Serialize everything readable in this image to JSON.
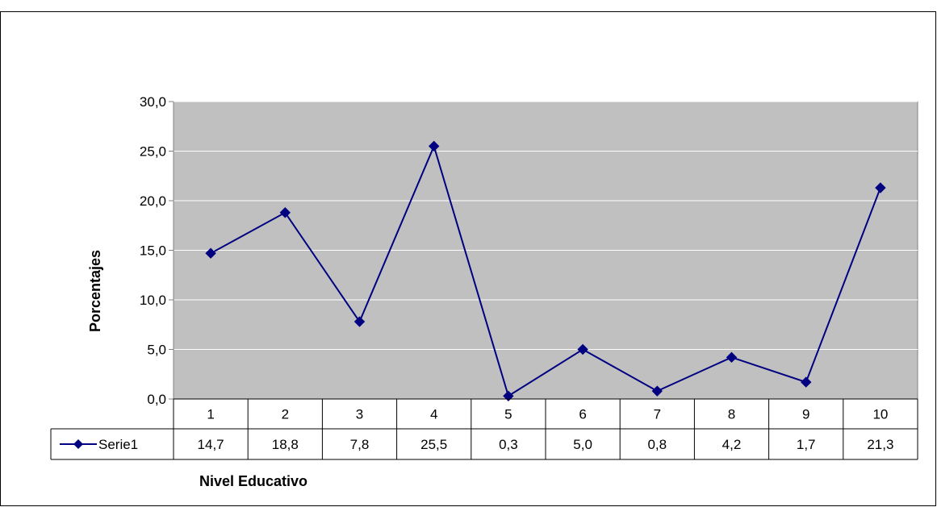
{
  "chart_data": {
    "type": "line",
    "title": "",
    "xlabel": "Nivel Educativo",
    "ylabel": "Porcentajes",
    "categories": [
      "1",
      "2",
      "3",
      "4",
      "5",
      "6",
      "7",
      "8",
      "9",
      "10"
    ],
    "series": [
      {
        "name": "Serie1",
        "values": [
          14.7,
          18.8,
          7.8,
          25.5,
          0.3,
          5.0,
          0.8,
          4.2,
          1.7,
          21.3
        ],
        "value_labels": [
          "14,7",
          "18,8",
          "7,8",
          "25,5",
          "0,3",
          "5,0",
          "0,8",
          "4,2",
          "1,7",
          "21,3"
        ],
        "color": "#000080",
        "marker": "diamond"
      }
    ],
    "ylim": [
      0,
      30
    ],
    "yticks": [
      0,
      5,
      10,
      15,
      20,
      25,
      30
    ],
    "ytick_labels": [
      "0,0",
      "5,0",
      "10,0",
      "15,0",
      "20,0",
      "25,0",
      "30,0"
    ],
    "grid": true,
    "plot_background": "#c0c0c0",
    "grid_color": "#ffffff",
    "legend": "data-table"
  }
}
